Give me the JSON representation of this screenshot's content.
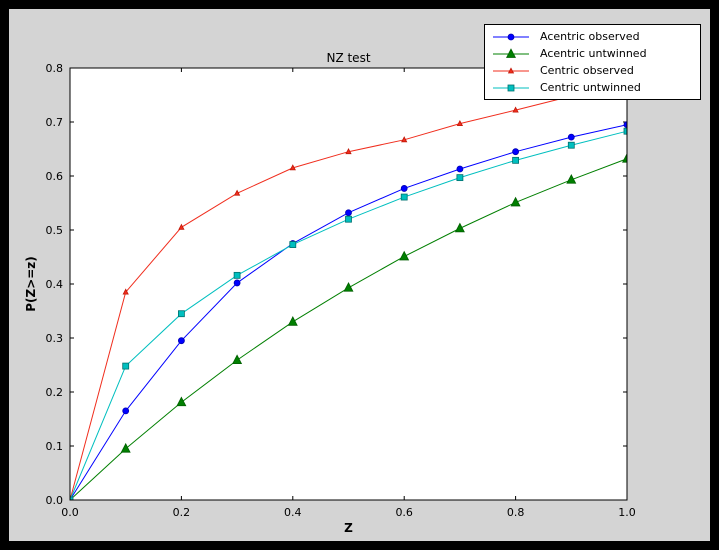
{
  "style": {
    "window_bg": "#000000",
    "figure_bg": "#d4d4d4",
    "axes_bg": "#ffffff",
    "frame_color": "#000000",
    "tick_color": "#000000",
    "label_color": "#000000",
    "legend_bg": "#ffffff",
    "legend_border": "#000000"
  },
  "chart_data": {
    "type": "line",
    "title": "NZ test",
    "xlabel": "Z",
    "ylabel": "P(Z>=z)",
    "xlim": [
      0.0,
      1.0
    ],
    "ylim": [
      0.0,
      0.8
    ],
    "grid": false,
    "legend_position": "top-right",
    "x_ticks": [
      0.0,
      0.2,
      0.4,
      0.6,
      0.8,
      1.0
    ],
    "x_tick_labels": [
      "0.0",
      "0.2",
      "0.4",
      "0.6",
      "0.8",
      "1.0"
    ],
    "y_ticks": [
      0.0,
      0.1,
      0.2,
      0.3,
      0.4,
      0.5,
      0.6,
      0.7,
      0.8
    ],
    "y_tick_labels": [
      "0.0",
      "0.1",
      "0.2",
      "0.3",
      "0.4",
      "0.5",
      "0.6",
      "0.7",
      "0.8"
    ],
    "x": [
      0.0,
      0.1,
      0.2,
      0.3,
      0.4,
      0.5,
      0.6,
      0.7,
      0.8,
      0.9,
      1.0
    ],
    "series": [
      {
        "name": "Acentric observed",
        "color": "#0000ff",
        "edge": "#0000b4",
        "marker": "circle",
        "marker_size": 6,
        "values": [
          0.0,
          0.165,
          0.295,
          0.402,
          0.475,
          0.532,
          0.577,
          0.613,
          0.645,
          0.672,
          0.695
        ]
      },
      {
        "name": "Acentric untwinned",
        "color": "#007f00",
        "edge": "#005f00",
        "marker": "triangle",
        "marker_size": 7,
        "values": [
          0.0,
          0.095,
          0.181,
          0.259,
          0.33,
          0.393,
          0.451,
          0.503,
          0.551,
          0.593,
          0.632
        ]
      },
      {
        "name": "Centric observed",
        "color": "#f02d1d",
        "edge": "#c01808",
        "marker": "triangle",
        "marker_size": 4,
        "values": [
          0.0,
          0.385,
          0.505,
          0.568,
          0.615,
          0.645,
          0.667,
          0.697,
          0.722,
          0.748,
          0.772
        ]
      },
      {
        "name": "Centric untwinned",
        "color": "#00bfbf",
        "edge": "#00706e",
        "marker": "square",
        "marker_size": 6,
        "values": [
          0.0,
          0.248,
          0.345,
          0.416,
          0.473,
          0.52,
          0.561,
          0.597,
          0.629,
          0.657,
          0.683
        ]
      }
    ]
  }
}
